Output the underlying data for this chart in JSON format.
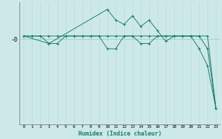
{
  "xlabel": "Humidex (Indice chaleur)",
  "x_ticks": [
    0,
    1,
    2,
    3,
    4,
    5,
    6,
    7,
    8,
    9,
    10,
    11,
    12,
    13,
    14,
    15,
    16,
    17,
    18,
    19,
    20,
    21,
    22,
    23
  ],
  "xlim": [
    -0.5,
    23.5
  ],
  "ylim": [
    -8.0,
    3.5
  ],
  "ytick_label": "-0",
  "ytick_val": 0.0,
  "bg_color": "#cce9e8",
  "grid_color": "#b8d8d6",
  "line_color": "#1a7a6e",
  "line1_x": [
    0,
    1,
    2,
    3,
    4,
    5,
    6,
    7,
    8,
    9,
    10,
    11,
    12,
    13,
    14,
    15,
    16,
    17,
    18,
    19,
    20,
    21,
    22,
    23
  ],
  "line1_y": [
    0.3,
    0.3,
    0.3,
    0.3,
    0.3,
    0.3,
    0.3,
    0.3,
    0.3,
    0.3,
    0.3,
    0.3,
    0.3,
    0.3,
    0.3,
    0.3,
    0.3,
    0.3,
    0.3,
    0.3,
    0.3,
    0.3,
    0.3,
    -6.5
  ],
  "line2_x": [
    0,
    1,
    2,
    3,
    4,
    5,
    6,
    7,
    8,
    9,
    10,
    11,
    12,
    13,
    14,
    15,
    16,
    17,
    18,
    19,
    20,
    21,
    22,
    23
  ],
  "line2_y": [
    0.3,
    0.3,
    0.3,
    -0.4,
    -0.4,
    0.3,
    0.3,
    0.3,
    0.3,
    0.3,
    -0.9,
    -0.9,
    0.3,
    0.3,
    -0.4,
    -0.4,
    0.3,
    0.3,
    0.3,
    0.3,
    0.3,
    -0.9,
    -2.5,
    -6.5
  ],
  "line3_x": [
    0,
    3,
    10,
    11,
    12,
    13,
    14,
    15,
    16,
    17,
    18,
    19,
    20,
    21,
    22,
    23
  ],
  "line3_y": [
    0.3,
    -0.4,
    2.8,
    1.8,
    1.4,
    2.2,
    1.2,
    1.8,
    0.8,
    -0.2,
    0.3,
    0.3,
    0.3,
    0.3,
    -0.9,
    -6.5
  ],
  "fig_width": 3.2,
  "fig_height": 2.0,
  "dpi": 100
}
